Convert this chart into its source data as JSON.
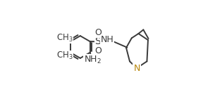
{
  "bg_color": "#ffffff",
  "bond_color": "#3a3a3a",
  "bond_lw": 1.4,
  "N_color": "#b8860b",
  "label_size": 9,
  "figsize": [
    3.05,
    1.34
  ],
  "dpi": 100,
  "xlim": [
    -0.05,
    1.05
  ],
  "ylim": [
    0.02,
    0.98
  ]
}
